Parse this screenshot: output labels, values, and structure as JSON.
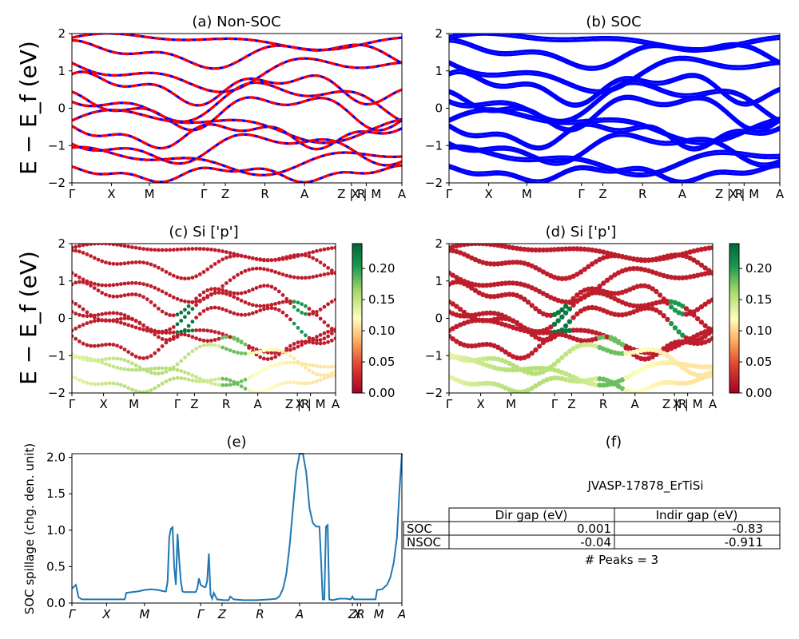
{
  "chart_data": [
    {
      "type": "line",
      "title": "(a) Non-SOC",
      "ylabel": "E − E_f (eV)",
      "ylim": [
        -2,
        2
      ],
      "yticks": [
        "2",
        "1",
        "0",
        "−1",
        "−2"
      ],
      "kpath_labels": [
        "Γ",
        "X",
        "M",
        "Γ",
        "Z",
        "R",
        "A",
        "Z | R",
        "X | M",
        "A"
      ],
      "series": [
        {
          "name": "",
          "color": "#0000ff",
          "style": "solid"
        },
        {
          "name": "",
          "color": "#ff0000",
          "style": "dashed"
        }
      ]
    },
    {
      "type": "line",
      "title": "(b) SOC",
      "ylim": [
        -2,
        2
      ],
      "yticks": [
        "2",
        "1",
        "0",
        "−1",
        "−2"
      ],
      "kpath_labels": [
        "Γ",
        "X",
        "M",
        "Γ",
        "Z",
        "R",
        "A",
        "Z | R",
        "X | M",
        "A"
      ],
      "series": [
        {
          "name": "",
          "color": "#0000ff",
          "style": "solid"
        }
      ]
    },
    {
      "type": "scatter",
      "title": "(c)  Si ['p']",
      "ylabel": "E − E_f (eV)",
      "ylim": [
        -2,
        2
      ],
      "yticks": [
        "2",
        "1",
        "0",
        "−1",
        "−2"
      ],
      "kpath_labels": [
        "Γ",
        "X",
        "M",
        "Γ",
        "Z",
        "R",
        "A",
        "Z |R",
        "X | M",
        "A"
      ],
      "colorbar": {
        "min": 0.0,
        "max": 0.24,
        "ticks": [
          "0.00",
          "0.05",
          "0.10",
          "0.15",
          "0.20"
        ],
        "colormap": "RdYlGn"
      }
    },
    {
      "type": "scatter",
      "title": "(d) Si ['p']",
      "ylim": [
        -2,
        2
      ],
      "yticks": [
        "2",
        "1",
        "0",
        "−1",
        "−2"
      ],
      "kpath_labels": [
        "Γ",
        "X",
        "M",
        "Γ",
        "Z",
        "R",
        "A",
        "Z |R",
        "X | M",
        "A"
      ],
      "colorbar": {
        "min": 0.0,
        "max": 0.24,
        "ticks": [
          "0.00",
          "0.05",
          "0.10",
          "0.15",
          "0.20"
        ],
        "colormap": "RdYlGn"
      }
    },
    {
      "type": "line",
      "title": "(e)",
      "ylabel": "SOC spillage (chg. den. unit)",
      "ylim": [
        0,
        2.05
      ],
      "xlim": [
        0,
        1
      ],
      "yticks": [
        "0.0",
        "0.5",
        "1.0",
        "1.5",
        "2.0"
      ],
      "xtick_labels": [
        "Γ",
        "X",
        "M",
        "Γ",
        "Z",
        "R",
        "A",
        "Z",
        "X",
        "R",
        "M",
        "A"
      ],
      "xtick_positions": [
        0.0,
        0.105,
        0.22,
        0.39,
        0.455,
        0.57,
        0.69,
        0.85,
        0.865,
        0.875,
        0.93,
        1.0
      ],
      "series": [
        {
          "name": "",
          "color": "#1f77b4",
          "x": [
            0.0,
            0.012,
            0.02,
            0.03,
            0.06,
            0.1,
            0.14,
            0.16,
            0.165,
            0.2,
            0.22,
            0.24,
            0.26,
            0.28,
            0.285,
            0.29,
            0.295,
            0.3,
            0.305,
            0.31,
            0.315,
            0.32,
            0.325,
            0.33,
            0.335,
            0.34,
            0.36,
            0.375,
            0.38,
            0.385,
            0.39,
            0.4,
            0.405,
            0.41,
            0.415,
            0.42,
            0.425,
            0.43,
            0.44,
            0.46,
            0.475,
            0.48,
            0.49,
            0.52,
            0.56,
            0.6,
            0.62,
            0.63,
            0.64,
            0.65,
            0.66,
            0.67,
            0.68,
            0.69,
            0.7,
            0.71,
            0.72,
            0.73,
            0.74,
            0.75,
            0.755,
            0.76,
            0.765,
            0.77,
            0.775,
            0.78,
            0.79,
            0.8,
            0.81,
            0.83,
            0.845,
            0.85,
            0.855,
            0.87,
            0.9,
            0.92,
            0.925,
            0.94,
            0.955,
            0.965,
            0.975,
            0.985,
            0.992,
            1.0
          ],
          "y": [
            0.2,
            0.25,
            0.08,
            0.05,
            0.05,
            0.05,
            0.05,
            0.05,
            0.14,
            0.16,
            0.18,
            0.19,
            0.18,
            0.16,
            0.16,
            0.3,
            0.9,
            1.02,
            1.04,
            0.5,
            0.25,
            0.95,
            0.6,
            0.3,
            0.16,
            0.15,
            0.15,
            0.15,
            0.2,
            0.34,
            0.25,
            0.22,
            0.22,
            0.3,
            0.68,
            0.12,
            0.06,
            0.14,
            0.05,
            0.04,
            0.04,
            0.09,
            0.05,
            0.04,
            0.04,
            0.05,
            0.06,
            0.1,
            0.2,
            0.4,
            0.8,
            1.3,
            1.8,
            2.05,
            2.05,
            1.8,
            1.3,
            1.1,
            1.05,
            1.05,
            0.6,
            0.05,
            0.05,
            1.05,
            1.07,
            0.05,
            0.04,
            0.05,
            0.06,
            0.06,
            0.05,
            0.09,
            0.05,
            0.05,
            0.05,
            0.05,
            0.18,
            0.19,
            0.25,
            0.35,
            0.55,
            0.9,
            1.5,
            2.05
          ]
        }
      ]
    }
  ],
  "info_panel": {
    "title": "(f)",
    "material_id": "JVASP-17878_ErTiSi",
    "table": {
      "columns": [
        "Dir gap (eV)",
        "Indir gap (eV)"
      ],
      "rows": [
        {
          "label": "SOC",
          "values": [
            "0.001",
            "-0.83"
          ]
        },
        {
          "label": "NSOC",
          "values": [
            "-0.04",
            "-0.911"
          ]
        }
      ]
    },
    "peaks_text": "# Peaks = 3"
  }
}
